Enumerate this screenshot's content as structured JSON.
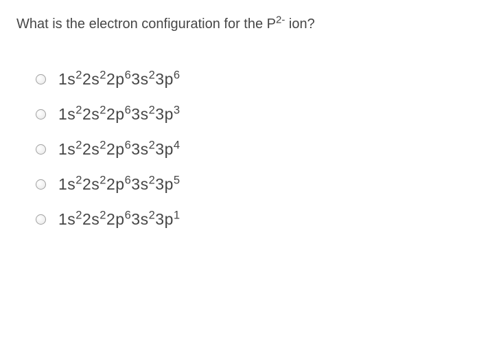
{
  "question": {
    "prefix": "What is the electron configuration for the P",
    "super": "2-",
    "suffix": " ion?"
  },
  "options": [
    {
      "parts": [
        "1s",
        "2",
        "2s",
        "2",
        "2p",
        "6",
        "3s",
        "2",
        "3p",
        "6"
      ]
    },
    {
      "parts": [
        "1s",
        "2",
        "2s",
        "2",
        "2p",
        "6",
        "3s",
        "2",
        "3p",
        "3"
      ]
    },
    {
      "parts": [
        "1s",
        "2",
        "2s",
        "2",
        "2p",
        "6",
        "3s",
        "2",
        "3p",
        "4"
      ]
    },
    {
      "parts": [
        "1s",
        "2",
        "2s",
        "2",
        "2p",
        "6",
        "3s",
        "2",
        "3p",
        "5"
      ]
    },
    {
      "parts": [
        "1s",
        "2",
        "2s",
        "2",
        "2p",
        "6",
        "3s",
        "2",
        "3p",
        "1"
      ]
    }
  ]
}
